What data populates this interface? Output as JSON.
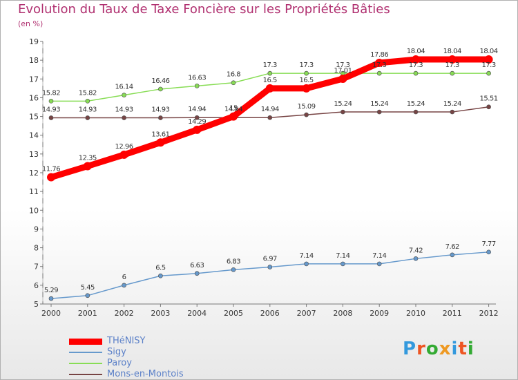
{
  "chart_data": {
    "type": "line",
    "title": "Evolution du Taux de Taxe Foncière sur les Propriétés Bâties",
    "ylabel": "(en %)",
    "xlabel": "",
    "ylim": [
      5,
      19
    ],
    "yticks": [
      "5",
      "6",
      "7",
      "8",
      "9",
      "10",
      "11",
      "12",
      "13",
      "14",
      "15",
      "16",
      "17",
      "18",
      "19"
    ],
    "categories": [
      "2000",
      "2001",
      "2002",
      "2003",
      "2004",
      "2005",
      "2006",
      "2007",
      "2008",
      "2009",
      "2010",
      "2011",
      "2012"
    ],
    "series": [
      {
        "name": "THéNISY",
        "color": "#ff0000",
        "values": [
          11.76,
          12.35,
          12.96,
          13.61,
          14.29,
          15,
          16.5,
          16.5,
          17.01,
          17.86,
          18.04,
          18.04,
          18.04
        ],
        "labels": [
          "11.76",
          "12.35",
          "12.96",
          "13.61",
          "14.29",
          "15",
          "16.5",
          "16.5",
          "17.01",
          "17.86",
          "18.04",
          "18.04",
          "18.04"
        ]
      },
      {
        "name": "Sigy",
        "color": "#6699cc",
        "values": [
          5.29,
          5.45,
          6,
          6.5,
          6.63,
          6.83,
          6.97,
          7.14,
          7.14,
          7.14,
          7.42,
          7.62,
          7.77
        ],
        "labels": [
          "5.29",
          "5.45",
          "6",
          "6.5",
          "6.63",
          "6.83",
          "6.97",
          "7.14",
          "7.14",
          "7.14",
          "7.42",
          "7.62",
          "7.77"
        ]
      },
      {
        "name": "Paroy",
        "color": "#88dd55",
        "values": [
          15.82,
          15.82,
          16.14,
          16.46,
          16.63,
          16.8,
          17.3,
          17.3,
          17.3,
          17.3,
          17.3,
          17.3,
          17.3
        ],
        "labels": [
          "15.82",
          "15.82",
          "16.14",
          "16.46",
          "16.63",
          "16.8",
          "17.3",
          "17.3",
          "17.3",
          "17.3",
          "17.3",
          "17.3",
          "17.3"
        ]
      },
      {
        "name": "Mons-en-Montois",
        "color": "#774444",
        "values": [
          14.93,
          14.93,
          14.93,
          14.93,
          14.94,
          14.94,
          14.94,
          15.09,
          15.24,
          15.24,
          15.24,
          15.24,
          15.51
        ],
        "labels": [
          "14.93",
          "14.93",
          "14.93",
          "14.93",
          "14.94",
          "14.94",
          "14.94",
          "15.09",
          "15.24",
          "15.24",
          "15.24",
          "15.24",
          "15.51"
        ]
      }
    ]
  },
  "logo": {
    "text": "Proxiti",
    "letters": [
      "P",
      "r",
      "o",
      "x",
      "i",
      "t",
      "i"
    ],
    "colors": [
      "#3399dd",
      "#ee5522",
      "#33aa33",
      "#ee9922",
      "#3399dd",
      "#ee5522",
      "#33aa33"
    ]
  }
}
